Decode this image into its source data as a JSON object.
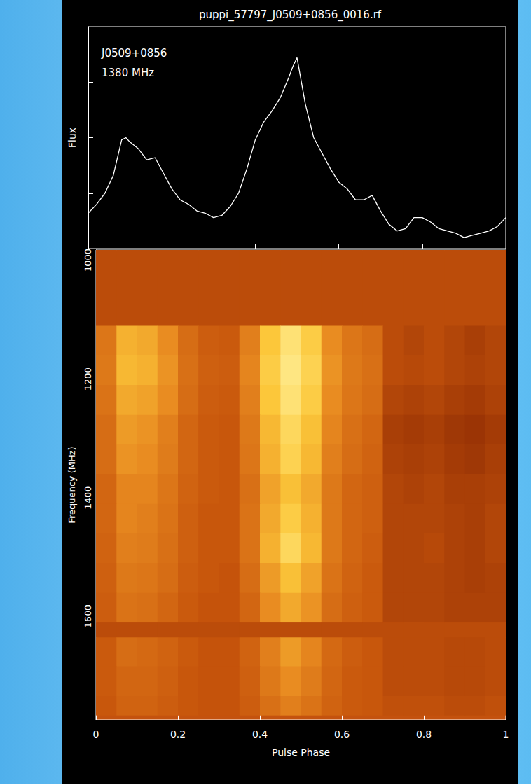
{
  "chart_data": [
    {
      "type": "line",
      "title": "puppi_57797_J0509+0856_0016.rf",
      "ylabel": "Flux",
      "annotations": [
        "J0509+0856",
        "1380 MHz"
      ],
      "x": [
        0,
        0.02,
        0.04,
        0.06,
        0.08,
        0.09,
        0.1,
        0.12,
        0.14,
        0.16,
        0.18,
        0.2,
        0.22,
        0.24,
        0.26,
        0.28,
        0.3,
        0.32,
        0.34,
        0.36,
        0.38,
        0.4,
        0.42,
        0.44,
        0.46,
        0.48,
        0.49,
        0.5,
        0.52,
        0.54,
        0.56,
        0.58,
        0.6,
        0.62,
        0.64,
        0.66,
        0.68,
        0.7,
        0.72,
        0.74,
        0.76,
        0.78,
        0.8,
        0.82,
        0.84,
        0.86,
        0.88,
        0.9,
        0.92,
        0.94,
        0.96,
        0.98,
        1
      ],
      "values": [
        0.16,
        0.2,
        0.25,
        0.33,
        0.49,
        0.5,
        0.48,
        0.45,
        0.4,
        0.41,
        0.34,
        0.27,
        0.22,
        0.2,
        0.17,
        0.16,
        0.14,
        0.15,
        0.19,
        0.25,
        0.36,
        0.49,
        0.57,
        0.62,
        0.68,
        0.77,
        0.82,
        0.86,
        0.65,
        0.5,
        0.43,
        0.36,
        0.3,
        0.27,
        0.22,
        0.22,
        0.24,
        0.17,
        0.11,
        0.08,
        0.09,
        0.14,
        0.14,
        0.12,
        0.09,
        0.08,
        0.07,
        0.05,
        0.06,
        0.07,
        0.08,
        0.1,
        0.14
      ],
      "color": "#ffffff",
      "xlim": [
        0,
        1
      ],
      "ylim": [
        0,
        1
      ],
      "xticks": [
        0,
        0.2,
        0.4,
        0.6,
        0.8,
        1
      ],
      "yticks": [
        0,
        0.25,
        0.5,
        0.75,
        1
      ],
      "tick_labels": false
    },
    {
      "type": "heatmap",
      "xlabel": "Pulse Phase",
      "ylabel": "Frequency (MHz)",
      "x_bins": [
        0,
        0.05,
        0.1,
        0.15,
        0.2,
        0.25,
        0.3,
        0.35,
        0.4,
        0.45,
        0.5,
        0.55,
        0.6,
        0.65,
        0.7,
        0.75,
        0.8,
        0.85,
        0.9,
        0.95,
        1
      ],
      "y_bins": [
        983,
        1110,
        1160,
        1210,
        1260,
        1310,
        1360,
        1410,
        1460,
        1510,
        1560,
        1610,
        1635,
        1685,
        1735,
        1767
      ],
      "cells": [
        [
          0.42,
          0.42,
          0.42,
          0.42,
          0.42,
          0.42,
          0.42,
          0.42,
          0.42,
          0.42,
          0.42,
          0.42,
          0.42,
          0.42,
          0.42,
          0.42,
          0.42,
          0.42,
          0.42,
          0.42
        ],
        [
          0.55,
          0.72,
          0.7,
          0.62,
          0.52,
          0.47,
          0.46,
          0.58,
          0.78,
          0.88,
          0.8,
          0.62,
          0.55,
          0.52,
          0.42,
          0.4,
          0.42,
          0.4,
          0.38,
          0.4
        ],
        [
          0.56,
          0.74,
          0.72,
          0.64,
          0.53,
          0.48,
          0.47,
          0.6,
          0.8,
          0.9,
          0.82,
          0.64,
          0.56,
          0.53,
          0.42,
          0.41,
          0.42,
          0.4,
          0.39,
          0.4
        ],
        [
          0.54,
          0.7,
          0.68,
          0.62,
          0.52,
          0.47,
          0.46,
          0.58,
          0.78,
          0.88,
          0.8,
          0.62,
          0.55,
          0.52,
          0.4,
          0.39,
          0.4,
          0.38,
          0.37,
          0.39
        ],
        [
          0.52,
          0.66,
          0.64,
          0.58,
          0.5,
          0.46,
          0.45,
          0.56,
          0.74,
          0.84,
          0.76,
          0.6,
          0.53,
          0.5,
          0.38,
          0.37,
          0.38,
          0.36,
          0.35,
          0.37
        ],
        [
          0.52,
          0.64,
          0.62,
          0.57,
          0.5,
          0.46,
          0.45,
          0.55,
          0.72,
          0.82,
          0.74,
          0.58,
          0.52,
          0.49,
          0.39,
          0.38,
          0.39,
          0.37,
          0.36,
          0.38
        ],
        [
          0.5,
          0.6,
          0.6,
          0.55,
          0.49,
          0.46,
          0.45,
          0.53,
          0.68,
          0.76,
          0.7,
          0.56,
          0.5,
          0.48,
          0.4,
          0.39,
          0.4,
          0.38,
          0.38,
          0.39
        ],
        [
          0.5,
          0.6,
          0.58,
          0.54,
          0.48,
          0.45,
          0.45,
          0.54,
          0.7,
          0.8,
          0.72,
          0.56,
          0.5,
          0.48,
          0.4,
          0.4,
          0.4,
          0.39,
          0.38,
          0.4
        ],
        [
          0.49,
          0.58,
          0.57,
          0.53,
          0.48,
          0.45,
          0.45,
          0.54,
          0.72,
          0.84,
          0.74,
          0.56,
          0.5,
          0.47,
          0.4,
          0.4,
          0.41,
          0.39,
          0.38,
          0.4
        ],
        [
          0.48,
          0.56,
          0.55,
          0.52,
          0.47,
          0.45,
          0.44,
          0.52,
          0.66,
          0.76,
          0.68,
          0.54,
          0.49,
          0.46,
          0.4,
          0.4,
          0.4,
          0.39,
          0.38,
          0.39
        ],
        [
          0.47,
          0.54,
          0.53,
          0.5,
          0.46,
          0.44,
          0.44,
          0.5,
          0.62,
          0.7,
          0.64,
          0.52,
          0.48,
          0.46,
          0.4,
          0.4,
          0.4,
          0.39,
          0.39,
          0.39
        ],
        [
          0.42,
          0.42,
          0.42,
          0.42,
          0.42,
          0.42,
          0.42,
          0.42,
          0.42,
          0.42,
          0.42,
          0.42,
          0.42,
          0.42,
          0.42,
          0.42,
          0.42,
          0.42,
          0.42,
          0.42
        ],
        [
          0.46,
          0.52,
          0.51,
          0.49,
          0.46,
          0.44,
          0.44,
          0.49,
          0.58,
          0.66,
          0.6,
          0.51,
          0.47,
          0.45,
          0.42,
          0.42,
          0.42,
          0.41,
          0.41,
          0.42
        ],
        [
          0.46,
          0.5,
          0.5,
          0.48,
          0.45,
          0.44,
          0.44,
          0.48,
          0.56,
          0.62,
          0.57,
          0.5,
          0.46,
          0.45,
          0.42,
          0.42,
          0.42,
          0.41,
          0.41,
          0.42
        ],
        [
          0.45,
          0.49,
          0.49,
          0.47,
          0.45,
          0.44,
          0.44,
          0.47,
          0.53,
          0.58,
          0.54,
          0.49,
          0.46,
          0.45,
          0.43,
          0.43,
          0.43,
          0.42,
          0.42,
          0.43
        ]
      ],
      "zlim": [
        0.28,
        0.95
      ],
      "colors": [
        "#7a1c00",
        "#c8560c",
        "#e88a20",
        "#fcc83a",
        "#fff3a0"
      ],
      "xlim": [
        0,
        1
      ],
      "ylim": [
        983,
        1774
      ],
      "xticks": [
        0,
        0.2,
        0.4,
        0.6,
        0.8,
        1
      ],
      "yticks": [
        1000,
        1200,
        1400,
        1600
      ]
    }
  ]
}
